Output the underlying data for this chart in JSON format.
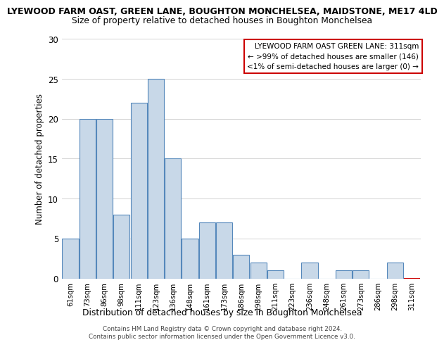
{
  "title_top": "LYEWOOD FARM OAST, GREEN LANE, BOUGHTON MONCHELSEA, MAIDSTONE, ME17 4LD",
  "title_main": "Size of property relative to detached houses in Boughton Monchelsea",
  "xlabel": "Distribution of detached houses by size in Boughton Monchelsea",
  "ylabel": "Number of detached properties",
  "categories": [
    "61sqm",
    "73sqm",
    "86sqm",
    "98sqm",
    "111sqm",
    "123sqm",
    "136sqm",
    "148sqm",
    "161sqm",
    "173sqm",
    "186sqm",
    "198sqm",
    "211sqm",
    "223sqm",
    "236sqm",
    "248sqm",
    "261sqm",
    "273sqm",
    "286sqm",
    "298sqm",
    "311sqm"
  ],
  "values": [
    5,
    20,
    20,
    8,
    22,
    25,
    15,
    5,
    7,
    7,
    3,
    2,
    1,
    0,
    2,
    0,
    1,
    1,
    0,
    2,
    0
  ],
  "bar_color": "#c8d8e8",
  "bar_edge_color": "#5588bb",
  "highlight_bar_index": 20,
  "highlight_bar_edge_color": "#cc0000",
  "annotation_lines": [
    "LYEWOOD FARM OAST GREEN LANE: 311sqm",
    "← >99% of detached houses are smaller (146)",
    "<1% of semi-detached houses are larger (0) →"
  ],
  "annotation_box_edge_color": "#cc0000",
  "ylim": [
    0,
    30
  ],
  "yticks": [
    0,
    5,
    10,
    15,
    20,
    25,
    30
  ],
  "footnote": "Contains HM Land Registry data © Crown copyright and database right 2024.\nContains public sector information licensed under the Open Government Licence v3.0.",
  "background_color": "#ffffff",
  "grid_color": "#cccccc"
}
